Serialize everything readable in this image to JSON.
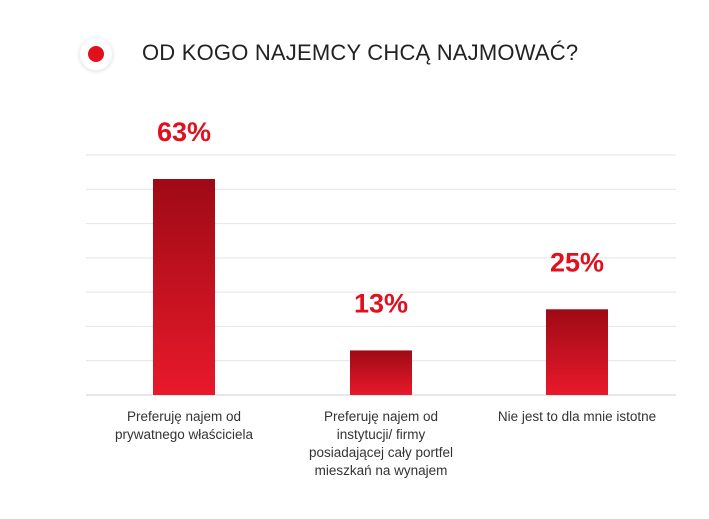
{
  "header": {
    "title": "OD KOGO NAJEMCY CHCĄ NAJMOWAĆ?"
  },
  "colors": {
    "accent": "#e0101f",
    "bar_top_dark": "#9e0a15",
    "bar_bottom": "#e8192b",
    "grid": "#e4e4e4"
  },
  "chart_data": {
    "type": "bar",
    "title": "OD KOGO NAJEMCY CHCĄ NAJMOWAĆ?",
    "categories": [
      "Preferuję najem od prywatnego właściciela",
      "Preferuję najem od instytucji/ firmy posiadającej cały portfel mieszkań na wynajem",
      "Nie jest to dla mnie istotne"
    ],
    "category_lines": [
      [
        "Preferuję najem od",
        "prywatnego właściciela"
      ],
      [
        "Preferuję najem od",
        "instytucji/ firmy",
        "posiadającej cały portfel",
        "mieszkań na wynajem"
      ],
      [
        "Nie jest to dla mnie istotne"
      ]
    ],
    "values": [
      63,
      13,
      25
    ],
    "value_labels": [
      "63%",
      "13%",
      "25%"
    ],
    "ylim": [
      0,
      70
    ],
    "grid": true,
    "legend": "none"
  }
}
